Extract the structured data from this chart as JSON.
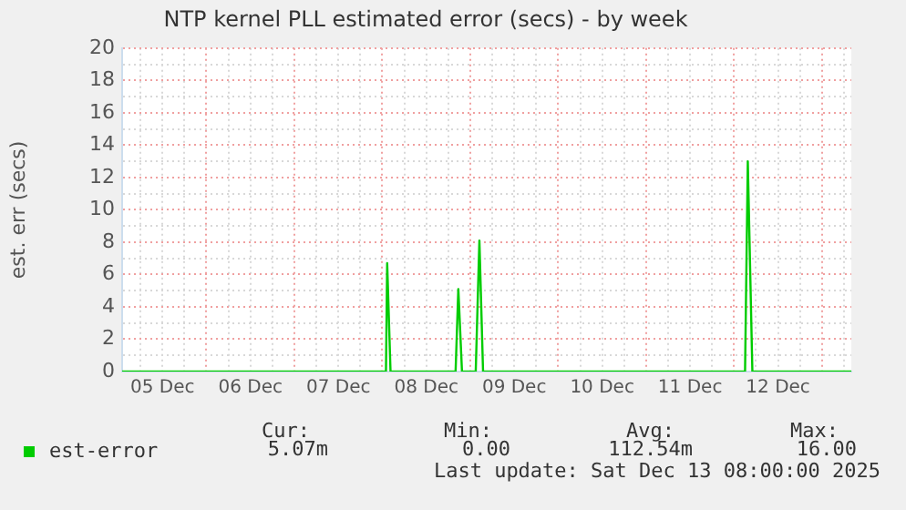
{
  "chart_data": {
    "type": "line",
    "title": "NTP kernel PLL estimated error (secs) - by week",
    "ylabel": "est. err (secs)",
    "x": [
      "2025-12-05T01:00",
      "2025-12-08T01:00",
      "2025-12-08T01:20",
      "2025-12-08T02:15",
      "2025-12-08T20:00",
      "2025-12-08T20:45",
      "2025-12-08T21:45",
      "2025-12-09T01:30",
      "2025-12-09T02:30",
      "2025-12-09T03:30",
      "2025-12-12T03:00",
      "2025-12-12T03:45",
      "2025-12-12T05:00",
      "2025-12-13T08:00"
    ],
    "series": [
      {
        "name": "est-error",
        "color": "#00cc00",
        "values": [
          0,
          0,
          6.7,
          0,
          0,
          5.1,
          0,
          0,
          8.1,
          0,
          0,
          13.0,
          0,
          0
        ]
      }
    ],
    "xlim": [
      "2025-12-05T01:00",
      "2025-12-13T08:00"
    ],
    "xticks": [
      {
        "value": "2025-12-05T06:00",
        "label": null
      },
      {
        "value": "2025-12-05T12:00",
        "label": "05 Dec"
      },
      {
        "value": "2025-12-05T18:00",
        "label": null
      },
      {
        "value": "2025-12-06T00:00",
        "label": null
      },
      {
        "value": "2025-12-06T06:00",
        "label": null
      },
      {
        "value": "2025-12-06T12:00",
        "label": "06 Dec"
      },
      {
        "value": "2025-12-06T18:00",
        "label": null
      },
      {
        "value": "2025-12-07T00:00",
        "label": null
      },
      {
        "value": "2025-12-07T06:00",
        "label": null
      },
      {
        "value": "2025-12-07T12:00",
        "label": "07 Dec"
      },
      {
        "value": "2025-12-07T18:00",
        "label": null
      },
      {
        "value": "2025-12-08T00:00",
        "label": null
      },
      {
        "value": "2025-12-08T06:00",
        "label": null
      },
      {
        "value": "2025-12-08T12:00",
        "label": "08 Dec"
      },
      {
        "value": "2025-12-08T18:00",
        "label": null
      },
      {
        "value": "2025-12-09T00:00",
        "label": null
      },
      {
        "value": "2025-12-09T06:00",
        "label": null
      },
      {
        "value": "2025-12-09T12:00",
        "label": "09 Dec"
      },
      {
        "value": "2025-12-09T18:00",
        "label": null
      },
      {
        "value": "2025-12-10T00:00",
        "label": null
      },
      {
        "value": "2025-12-10T06:00",
        "label": null
      },
      {
        "value": "2025-12-10T12:00",
        "label": "10 Dec"
      },
      {
        "value": "2025-12-10T18:00",
        "label": null
      },
      {
        "value": "2025-12-11T00:00",
        "label": null
      },
      {
        "value": "2025-12-11T06:00",
        "label": null
      },
      {
        "value": "2025-12-11T12:00",
        "label": "11 Dec"
      },
      {
        "value": "2025-12-11T18:00",
        "label": null
      },
      {
        "value": "2025-12-12T00:00",
        "label": null
      },
      {
        "value": "2025-12-12T06:00",
        "label": null
      },
      {
        "value": "2025-12-12T12:00",
        "label": "12 Dec"
      },
      {
        "value": "2025-12-12T18:00",
        "label": null
      },
      {
        "value": "2025-12-13T00:00",
        "label": null
      },
      {
        "value": "2025-12-13T06:00",
        "label": null
      }
    ],
    "ylim": [
      0,
      20
    ],
    "yticks": [
      0,
      {
        "value": 1,
        "label": null
      },
      2,
      {
        "value": 3,
        "label": null
      },
      4,
      {
        "value": 5,
        "label": null
      },
      6,
      {
        "value": 7,
        "label": null
      },
      8,
      {
        "value": 9,
        "label": null
      },
      10,
      {
        "value": 11,
        "label": null
      },
      12,
      {
        "value": 13,
        "label": null
      },
      14,
      {
        "value": 15,
        "label": null
      },
      16,
      {
        "value": 17,
        "label": null
      },
      18,
      {
        "value": 19,
        "label": null
      },
      20
    ],
    "grid": true,
    "legend": "bottom",
    "marker": "none",
    "line_style": "solid",
    "annotations": [
      "Cur:",
      "Min:",
      "Avg:",
      "Max:",
      "5.07m",
      "0.00",
      "112.54m",
      "16.00",
      "Last update: Sat Dec 13 08:00:00 2025"
    ]
  }
}
